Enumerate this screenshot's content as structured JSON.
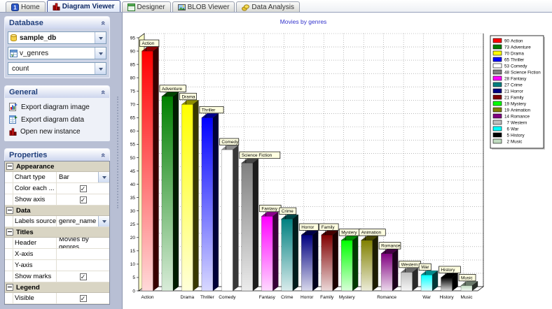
{
  "tabs": [
    {
      "label": "Home",
      "icon": "home-icon",
      "active": false
    },
    {
      "label": "Diagram Viewer",
      "icon": "diagram-icon",
      "active": true
    },
    {
      "label": "Designer",
      "icon": "designer-icon",
      "active": false
    },
    {
      "label": "BLOB Viewer",
      "icon": "blob-viewer-icon",
      "active": false
    },
    {
      "label": "Data Analysis",
      "icon": "data-analysis-icon",
      "active": false
    }
  ],
  "sidebar": {
    "database_panel": {
      "title": "Database",
      "selects": [
        {
          "value": "sample_db",
          "icon": "database-icon",
          "bold": true
        },
        {
          "value": "v_genres",
          "icon": "view-icon",
          "bold": false
        },
        {
          "value": "count",
          "icon": "",
          "bold": false
        }
      ]
    },
    "general_panel": {
      "title": "General",
      "items": [
        {
          "label": "Export diagram image",
          "icon": "export-image-icon"
        },
        {
          "label": "Export diagram data",
          "icon": "export-data-icon"
        },
        {
          "label": "Open new instance",
          "icon": "new-instance-icon"
        }
      ]
    },
    "properties_panel": {
      "title": "Properties",
      "groups": [
        {
          "name": "Appearance",
          "rows": [
            {
              "label": "Chart type",
              "type": "select",
              "value": "Bar"
            },
            {
              "label": "Color each ...",
              "type": "checkbox",
              "checked": true
            },
            {
              "label": "Show axis",
              "type": "checkbox",
              "checked": true
            }
          ]
        },
        {
          "name": "Data",
          "rows": [
            {
              "label": "Labels source",
              "type": "select",
              "value": "genre_name"
            }
          ]
        },
        {
          "name": "Titles",
          "rows": [
            {
              "label": "Header",
              "type": "text",
              "value": "Movies by genres"
            },
            {
              "label": "X-axis",
              "type": "text",
              "value": ""
            },
            {
              "label": "Y-axis",
              "type": "text",
              "value": ""
            },
            {
              "label": "Show marks",
              "type": "checkbox",
              "checked": true
            }
          ]
        },
        {
          "name": "Legend",
          "rows": [
            {
              "label": "Visible",
              "type": "checkbox",
              "checked": true
            }
          ]
        }
      ]
    }
  },
  "chart_data": {
    "type": "bar",
    "title": "Movies by genres",
    "title_color": "#3333cc",
    "categories": [
      "Action",
      "Adventure",
      "Drama",
      "Thriller",
      "Comedy",
      "Science Fiction",
      "Fantasy",
      "Crime",
      "Horror",
      "Family",
      "Mystery",
      "Animation",
      "Romance",
      "Western",
      "War",
      "History",
      "Music"
    ],
    "values": [
      90,
      73,
      70,
      65,
      53,
      48,
      28,
      27,
      21,
      21,
      19,
      19,
      14,
      7,
      6,
      5,
      2
    ],
    "colors": [
      "#ff0000",
      "#008000",
      "#ffff00",
      "#0000ff",
      "#ffffff",
      "#808080",
      "#ff00ff",
      "#008080",
      "#000080",
      "#800000",
      "#00ff00",
      "#808000",
      "#800080",
      "#c0c0c0",
      "#00ffff",
      "#000000",
      "#c0dcc0"
    ],
    "bar_labels_visible": true,
    "x_axis_labels_shown": [
      "Action",
      "Drama",
      "Thriller",
      "Comedy",
      "Fantasy",
      "Crime",
      "Horror",
      "Family",
      "Mystery",
      "Romance",
      "War",
      "History",
      "Music"
    ],
    "ylim": [
      0,
      95
    ],
    "ytick_step": 5,
    "grid": true,
    "grid_style": "dotted",
    "legend_position": "right",
    "wall_color": "#ffffc8",
    "label_box_color": "#ffffe1"
  }
}
